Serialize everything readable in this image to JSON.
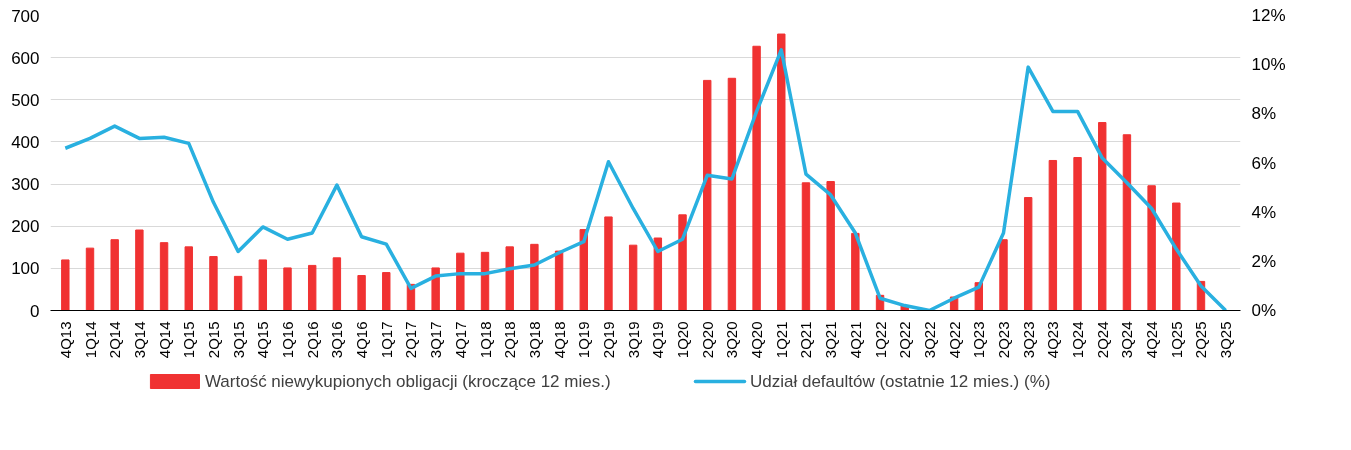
{
  "chart_data": {
    "type": "bar",
    "categories": [
      "4Q13",
      "1Q14",
      "2Q14",
      "3Q14",
      "4Q14",
      "1Q15",
      "2Q15",
      "3Q15",
      "4Q15",
      "1Q16",
      "2Q16",
      "3Q16",
      "4Q16",
      "1Q17",
      "2Q17",
      "3Q17",
      "4Q17",
      "1Q18",
      "2Q18",
      "3Q18",
      "4Q18",
      "1Q19",
      "2Q19",
      "3Q19",
      "4Q19",
      "1Q20",
      "2Q20",
      "3Q20",
      "4Q20",
      "1Q21",
      "2Q21",
      "3Q21",
      "4Q21",
      "1Q22",
      "2Q22",
      "3Q22",
      "4Q22",
      "1Q23",
      "2Q23",
      "3Q23",
      "4Q23",
      "1Q24",
      "2Q24",
      "3Q24",
      "4Q24",
      "1Q25",
      "2Q25",
      "3Q25"
    ],
    "series": [
      {
        "name": "Wartość niewykupionych obligacji (kroczące 12 mies.)",
        "type": "bar",
        "color": "#f03232",
        "values": [
          120,
          148,
          168,
          191,
          161,
          151,
          128,
          81,
          120,
          101,
          107,
          125,
          83,
          90,
          62,
          101,
          136,
          138,
          151,
          157,
          141,
          192,
          222,
          155,
          172,
          227,
          546,
          551,
          627,
          656,
          303,
          306,
          183,
          36,
          12,
          null,
          32,
          66,
          168,
          268,
          356,
          363,
          446,
          417,
          296,
          255,
          69,
          null
        ]
      },
      {
        "name": "Udział defaultów (ostatnie 12 mies.) (%)",
        "type": "line",
        "axis": "y2",
        "color": "#29b0e0",
        "values": [
          6.6,
          7.0,
          7.5,
          7.0,
          7.05,
          6.8,
          4.4,
          2.4,
          3.4,
          2.9,
          3.15,
          5.1,
          3.0,
          2.7,
          0.9,
          1.4,
          1.5,
          1.5,
          1.7,
          1.85,
          2.35,
          2.8,
          6.05,
          4.15,
          2.4,
          2.9,
          5.5,
          5.35,
          8.1,
          10.6,
          5.55,
          4.7,
          3.15,
          0.5,
          0.2,
          0,
          0.5,
          0.95,
          3.15,
          9.9,
          8.1,
          8.1,
          6.2,
          5.2,
          4.15,
          2.5,
          1.0,
          0
        ]
      }
    ],
    "ylim": [
      0,
      700
    ],
    "yticks": [
      0,
      100,
      200,
      300,
      400,
      500,
      600,
      700
    ],
    "y2lim": [
      0,
      12
    ],
    "y2ticks": [
      {
        "value": 0,
        "label": "0%"
      },
      {
        "value": 2,
        "label": "2%"
      },
      {
        "value": 4,
        "label": "4%"
      },
      {
        "value": 6,
        "label": "6%"
      },
      {
        "value": 8,
        "label": "8%"
      },
      {
        "value": 10,
        "label": "10%"
      },
      {
        "value": 12,
        "label": "12%"
      }
    ],
    "grid": "y",
    "legend": "bottom",
    "line_style": "solid",
    "marker": "none"
  }
}
